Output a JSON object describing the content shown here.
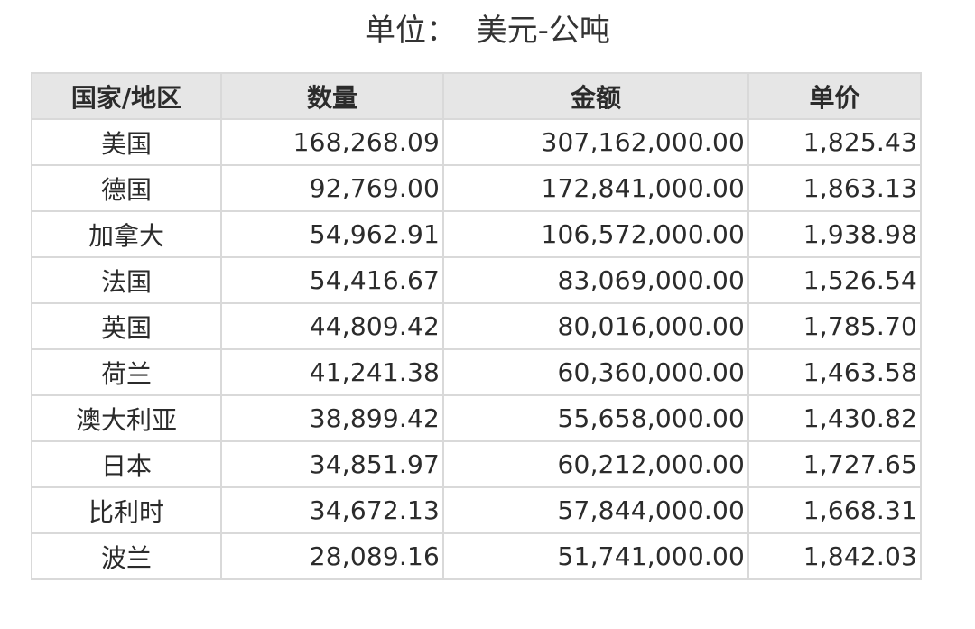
{
  "caption": "单位：  美元-公吨",
  "table": {
    "headers": [
      "国家/地区",
      "数量",
      "金额",
      "单价"
    ],
    "rows": [
      {
        "country": "美国",
        "quantity": "168,268.09",
        "amount": "307,162,000.00",
        "unit_price": "1,825.43"
      },
      {
        "country": "德国",
        "quantity": "92,769.00",
        "amount": "172,841,000.00",
        "unit_price": "1,863.13"
      },
      {
        "country": "加拿大",
        "quantity": "54,962.91",
        "amount": "106,572,000.00",
        "unit_price": "1,938.98"
      },
      {
        "country": "法国",
        "quantity": "54,416.67",
        "amount": "83,069,000.00",
        "unit_price": "1,526.54"
      },
      {
        "country": "英国",
        "quantity": "44,809.42",
        "amount": "80,016,000.00",
        "unit_price": "1,785.70"
      },
      {
        "country": "荷兰",
        "quantity": "41,241.38",
        "amount": "60,360,000.00",
        "unit_price": "1,463.58"
      },
      {
        "country": "澳大利亚",
        "quantity": "38,899.42",
        "amount": "55,658,000.00",
        "unit_price": "1,430.82"
      },
      {
        "country": "日本",
        "quantity": "34,851.97",
        "amount": "60,212,000.00",
        "unit_price": "1,727.65"
      },
      {
        "country": "比利时",
        "quantity": "34,672.13",
        "amount": "57,844,000.00",
        "unit_price": "1,668.31"
      },
      {
        "country": "波兰",
        "quantity": "28,089.16",
        "amount": "51,741,000.00",
        "unit_price": "1,842.03"
      }
    ]
  },
  "colors": {
    "header_bg": "#e6e6e6",
    "border": "#d9d9d9",
    "text": "#2b2b2b"
  }
}
